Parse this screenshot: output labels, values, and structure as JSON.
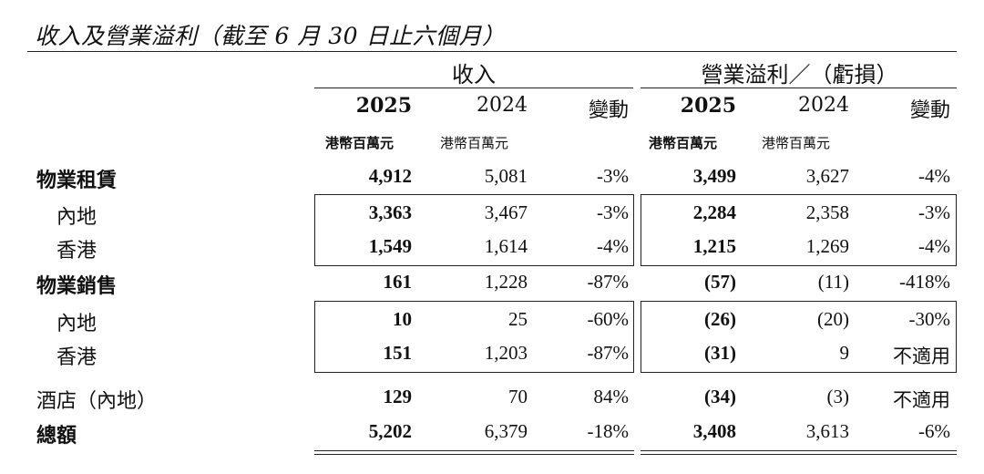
{
  "title": "收入及營業溢利（截至 6 月 30 日止六個月）",
  "groups": {
    "revenue": "收入",
    "profit": "營業溢利／（虧損）"
  },
  "columns": {
    "revenue": [
      "2025",
      "2024",
      "變動"
    ],
    "profit": [
      "2025",
      "2024",
      "變動"
    ]
  },
  "units": {
    "revenue_2025": "港幣百萬元",
    "revenue_2024": "港幣百萬元",
    "profit_2025": "港幣百萬元",
    "profit_2024": "港幣百萬元"
  },
  "rows": [
    {
      "label": "物業租賃",
      "r25": "4,912",
      "r24": "5,081",
      "rc": "-3%",
      "p25": "3,499",
      "p24": "3,627",
      "pc": "-4%"
    },
    {
      "label": "內地",
      "r25": "3,363",
      "r24": "3,467",
      "rc": "-3%",
      "p25": "2,284",
      "p24": "2,358",
      "pc": "-3%"
    },
    {
      "label": "香港",
      "r25": "1,549",
      "r24": "1,614",
      "rc": "-4%",
      "p25": "1,215",
      "p24": "1,269",
      "pc": "-4%"
    },
    {
      "label": "物業銷售",
      "r25": "161",
      "r24": "1,228",
      "rc": "-87%",
      "p25": "(57)",
      "p24": "(11)",
      "pc": "-418%"
    },
    {
      "label": "內地",
      "r25": "10",
      "r24": "25",
      "rc": "-60%",
      "p25": "(26)",
      "p24": "(20)",
      "pc": "-30%"
    },
    {
      "label": "香港",
      "r25": "151",
      "r24": "1,203",
      "rc": "-87%",
      "p25": "(31)",
      "p24": "9",
      "pc": "不適用"
    },
    {
      "label": "酒店（內地）",
      "r25": "129",
      "r24": "70",
      "rc": "84%",
      "p25": "(34)",
      "p24": "(3)",
      "pc": "不適用"
    },
    {
      "label": "總額",
      "r25": "5,202",
      "r24": "6,379",
      "rc": "-18%",
      "p25": "3,408",
      "p24": "3,613",
      "pc": "-6%"
    }
  ]
}
